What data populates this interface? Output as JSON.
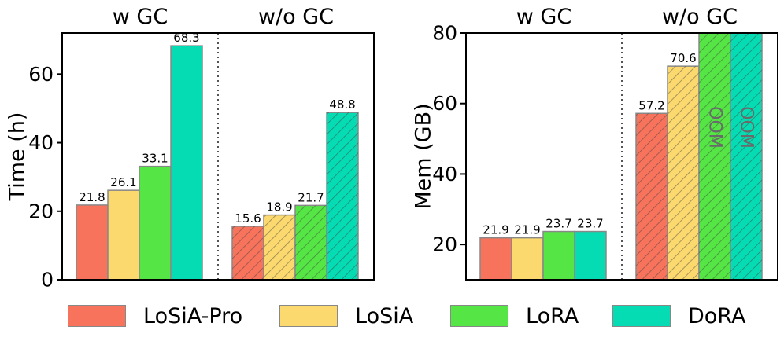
{
  "chart_data": [
    {
      "type": "bar",
      "ylabel": "Time (h)",
      "ylim": [
        0,
        72
      ],
      "yticks": [
        0,
        20,
        40,
        60
      ],
      "groups": [
        {
          "label": "w GC",
          "hatched": false,
          "values": [
            21.8,
            26.1,
            33.1,
            68.3
          ],
          "labels": [
            "21.8",
            "26.1",
            "33.1",
            "68.3"
          ]
        },
        {
          "label": "w/o GC",
          "hatched": true,
          "values": [
            15.6,
            18.9,
            21.7,
            48.8
          ],
          "labels": [
            "15.6",
            "18.9",
            "21.7",
            "48.8"
          ]
        }
      ]
    },
    {
      "type": "bar",
      "ylabel": "Mem (GB)",
      "ylim": [
        10,
        80
      ],
      "yticks": [
        20,
        40,
        60,
        80
      ],
      "groups": [
        {
          "label": "w GC",
          "hatched": false,
          "values": [
            21.9,
            21.9,
            23.7,
            23.7
          ],
          "labels": [
            "21.9",
            "21.9",
            "23.7",
            "23.7"
          ]
        },
        {
          "label": "w/o GC",
          "hatched": true,
          "values": [
            57.2,
            70.6,
            80,
            80
          ],
          "labels": [
            "57.2",
            "70.6",
            "OOM",
            "OOM"
          ]
        }
      ]
    }
  ],
  "legend": [
    {
      "label": "LoSiA-Pro",
      "color": "#f8735c"
    },
    {
      "label": "LoSiA",
      "color": "#fbd96f"
    },
    {
      "label": "LoRA",
      "color": "#55e544"
    },
    {
      "label": "DoRA",
      "color": "#06dcb3"
    }
  ]
}
